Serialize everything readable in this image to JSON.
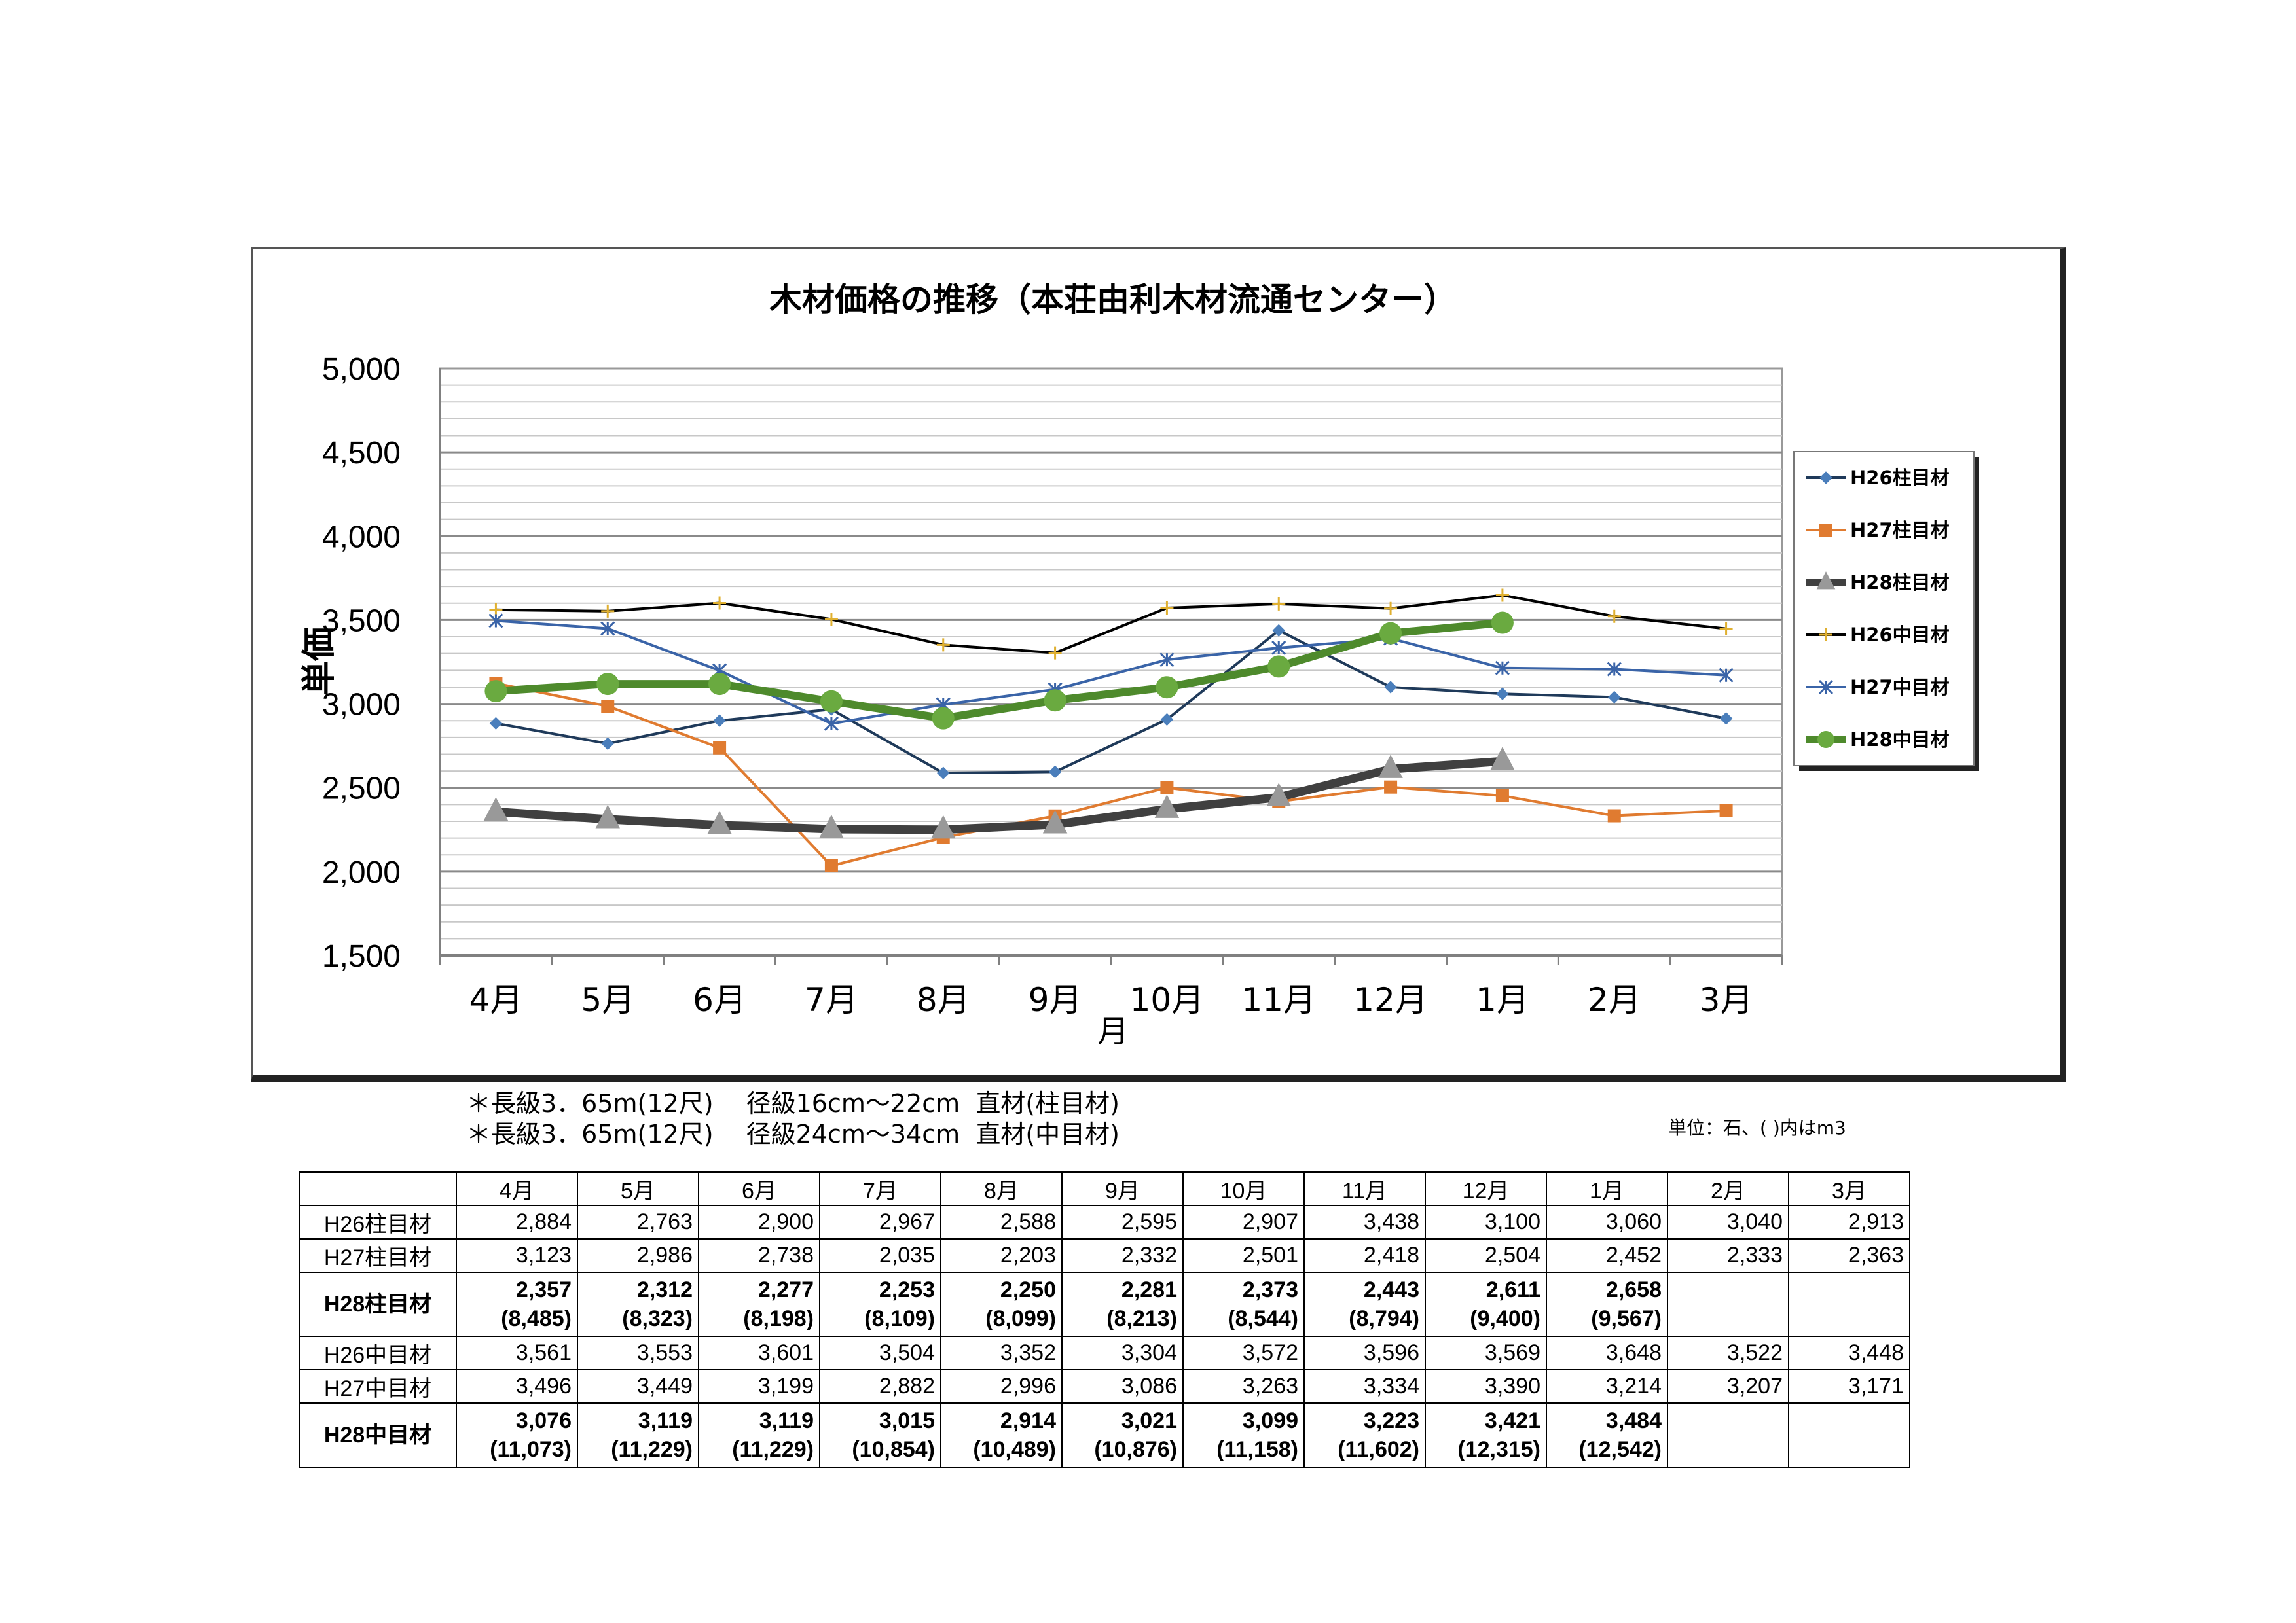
{
  "chart_data": {
    "type": "line",
    "title": "木材価格の推移（本荘由利木材流通センター）",
    "xlabel": "月",
    "ylabel": "単価",
    "categories": [
      "4月",
      "5月",
      "6月",
      "7月",
      "8月",
      "9月",
      "10月",
      "11月",
      "12月",
      "1月",
      "2月",
      "3月"
    ],
    "ylim": [
      1500,
      5000
    ],
    "yticks": [
      "1,500",
      "2,000",
      "2,500",
      "3,000",
      "3,500",
      "4,000",
      "4,500",
      "5,000"
    ],
    "grid": true,
    "legend": "right",
    "series": [
      {
        "name": "H26柱目材",
        "color": "#1f3a5a",
        "marker_color": "#4a7ebb",
        "marker": "diamond",
        "values": [
          2884,
          2763,
          2900,
          2967,
          2588,
          2595,
          2907,
          3438,
          3100,
          3060,
          3040,
          2913
        ]
      },
      {
        "name": "H27柱目材",
        "color": "#e07b30",
        "marker_color": "#e07b30",
        "marker": "square",
        "values": [
          3123,
          2986,
          2738,
          2035,
          2203,
          2332,
          2501,
          2418,
          2504,
          2452,
          2333,
          2363
        ]
      },
      {
        "name": "H28柱目材",
        "color": "#404040",
        "marker_color": "#999999",
        "marker": "triangle",
        "values": [
          2357,
          2312,
          2277,
          2253,
          2250,
          2281,
          2373,
          2443,
          2611,
          2658,
          null,
          null
        ]
      },
      {
        "name": "H26中目材",
        "color": "#000000",
        "marker_color": "#e0b030",
        "marker": "star",
        "values": [
          3561,
          3553,
          3601,
          3504,
          3352,
          3304,
          3572,
          3596,
          3569,
          3648,
          3522,
          3448
        ]
      },
      {
        "name": "H27中目材",
        "color": "#3a64a8",
        "marker_color": "#3a64a8",
        "marker": "xstar",
        "values": [
          3496,
          3449,
          3199,
          2882,
          2996,
          3086,
          3263,
          3334,
          3390,
          3214,
          3207,
          3171
        ]
      },
      {
        "name": "H28中目材",
        "color": "#4e8a2c",
        "marker_color": "#6aaa40",
        "marker": "circle",
        "values": [
          3076,
          3119,
          3119,
          3015,
          2914,
          3021,
          3099,
          3223,
          3421,
          3484,
          null,
          null
        ]
      }
    ]
  },
  "notes": [
    "＊長級3．65m(12尺)　 径級16cm～22cm  直材(柱目材)",
    "＊長級3．65m(12尺)　 径級24cm～34cm  直材(中目材)"
  ],
  "unit_note": "単位：石、(  )内はm3",
  "table": {
    "months": [
      "4月",
      "5月",
      "6月",
      "7月",
      "8月",
      "9月",
      "10月",
      "11月",
      "12月",
      "1月",
      "2月",
      "3月"
    ],
    "rows": [
      {
        "label": "H26柱目材",
        "bold": false,
        "cells": [
          "2,884",
          "2,763",
          "2,900",
          "2,967",
          "2,588",
          "2,595",
          "2,907",
          "3,438",
          "3,100",
          "3,060",
          "3,040",
          "2,913"
        ]
      },
      {
        "label": "H27柱目材",
        "bold": false,
        "cells": [
          "3,123",
          "2,986",
          "2,738",
          "2,035",
          "2,203",
          "2,332",
          "2,501",
          "2,418",
          "2,504",
          "2,452",
          "2,333",
          "2,363"
        ]
      },
      {
        "label": "H28柱目材",
        "bold": true,
        "cells": [
          "2,357",
          "2,312",
          "2,277",
          "2,253",
          "2,250",
          "2,281",
          "2,373",
          "2,443",
          "2,611",
          "2,658",
          "",
          ""
        ],
        "sub": [
          "(8,485)",
          "(8,323)",
          "(8,198)",
          "(8,109)",
          "(8,099)",
          "(8,213)",
          "(8,544)",
          "(8,794)",
          "(9,400)",
          "(9,567)",
          "",
          ""
        ]
      },
      {
        "label": "H26中目材",
        "bold": false,
        "cells": [
          "3,561",
          "3,553",
          "3,601",
          "3,504",
          "3,352",
          "3,304",
          "3,572",
          "3,596",
          "3,569",
          "3,648",
          "3,522",
          "3,448"
        ]
      },
      {
        "label": "H27中目材",
        "bold": false,
        "cells": [
          "3,496",
          "3,449",
          "3,199",
          "2,882",
          "2,996",
          "3,086",
          "3,263",
          "3,334",
          "3,390",
          "3,214",
          "3,207",
          "3,171"
        ]
      },
      {
        "label": "H28中目材",
        "bold": true,
        "cells": [
          "3,076",
          "3,119",
          "3,119",
          "3,015",
          "2,914",
          "3,021",
          "3,099",
          "3,223",
          "3,421",
          "3,484",
          "",
          ""
        ],
        "sub": [
          "(11,073)",
          "(11,229)",
          "(11,229)",
          "(10,854)",
          "(10,489)",
          "(10,876)",
          "(11,158)",
          "(11,602)",
          "(12,315)",
          "(12,542)",
          "",
          ""
        ]
      }
    ]
  }
}
